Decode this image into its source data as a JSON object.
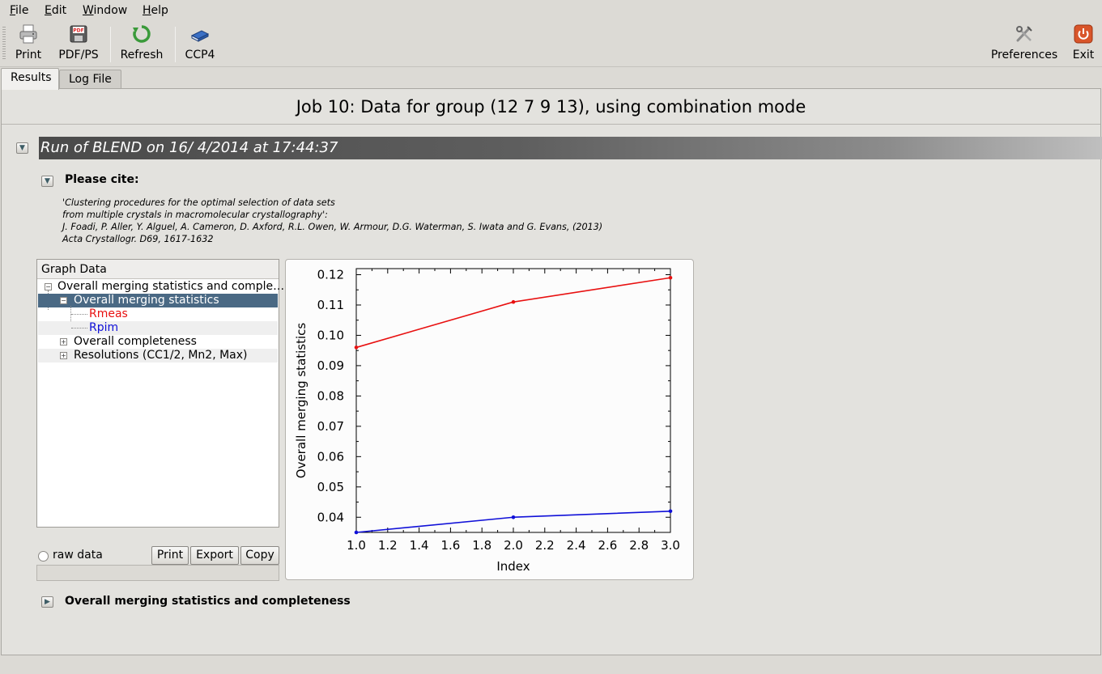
{
  "menu": [
    {
      "label": "File",
      "mnemonic": "F"
    },
    {
      "label": "Edit",
      "mnemonic": "E"
    },
    {
      "label": "Window",
      "mnemonic": "W"
    },
    {
      "label": "Help",
      "mnemonic": "H"
    }
  ],
  "toolbar": {
    "print": "Print",
    "pdf": "PDF/PS",
    "refresh": "Refresh",
    "ccp4": "CCP4",
    "preferences": "Preferences",
    "exit": "Exit"
  },
  "tabs": [
    "Results",
    "Log File"
  ],
  "job_title": "Job 10: Data for group (12 7 9 13), using combination mode",
  "run_header": "Run of BLEND on 16/ 4/2014 at 17:44:37",
  "cite": {
    "heading": "Please cite:",
    "lines": [
      "'Clustering procedures for the optimal selection of data sets",
      "from multiple crystals in macromolecular crystallography':",
      "J. Foadi, P. Aller, Y. Alguel, A. Cameron, D. Axford, R.L. Owen, W. Armour, D.G. Waterman, S. Iwata and G. Evans, (2013)",
      "Acta Crystallogr. D69, 1617-1632"
    ]
  },
  "graph_tree": {
    "header": "Graph Data",
    "root": "Overall merging statistics and comple…",
    "group": "Overall merging statistics",
    "series_items": [
      "Rmeas",
      "Rpim"
    ],
    "other_groups": [
      "Overall completeness",
      "Resolutions (CC1/2, Mn2, Max)"
    ]
  },
  "controls": {
    "raw_data": "raw data",
    "print": "Print",
    "export": "Export",
    "copy": "Copy"
  },
  "section2": "Overall merging statistics and completeness",
  "colors": {
    "rmeas": "#e81010",
    "rpim": "#1010d8",
    "selection": "#4a6984"
  },
  "chart_data": {
    "type": "line",
    "xlabel": "Index",
    "ylabel": "Overall merging statistics",
    "xlim": [
      1.0,
      3.0
    ],
    "ylim": [
      0.035,
      0.122
    ],
    "xticks": [
      "1.0",
      "1.2",
      "1.4",
      "1.6",
      "1.8",
      "2.0",
      "2.2",
      "2.4",
      "2.6",
      "2.8",
      "3.0"
    ],
    "yticks": [
      "0.04",
      "0.05",
      "0.06",
      "0.07",
      "0.08",
      "0.09",
      "0.10",
      "0.11",
      "0.12"
    ],
    "x": [
      1,
      2,
      3
    ],
    "series": [
      {
        "name": "Rmeas",
        "values": [
          0.096,
          0.111,
          0.119
        ],
        "color": "#e81010"
      },
      {
        "name": "Rpim",
        "values": [
          0.035,
          0.04,
          0.042
        ],
        "color": "#1010d8"
      }
    ],
    "grid": false,
    "legend": "none"
  }
}
